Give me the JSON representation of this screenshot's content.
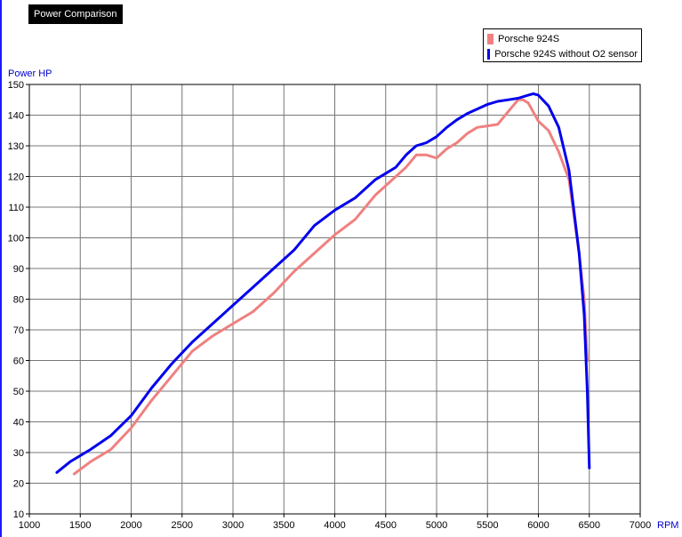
{
  "chart_data": {
    "type": "line",
    "title": "Power Comparison",
    "ylabel": "Power HP",
    "xlabel": "RPM",
    "xlim": [
      1000,
      7000
    ],
    "ylim": [
      10,
      150
    ],
    "xticks": [
      1000,
      1500,
      2000,
      2500,
      3000,
      3500,
      4000,
      4500,
      5000,
      5500,
      6000,
      6500,
      7000
    ],
    "yticks": [
      10,
      20,
      30,
      40,
      50,
      60,
      70,
      80,
      90,
      100,
      110,
      120,
      130,
      140,
      150
    ],
    "grid": true,
    "legend_position": "top-right",
    "series": [
      {
        "name": "Porsche 924S",
        "color": "#f08080",
        "x": [
          1440,
          1600,
          1800,
          2000,
          2200,
          2400,
          2600,
          2800,
          3000,
          3200,
          3400,
          3600,
          3800,
          4000,
          4200,
          4400,
          4500,
          4600,
          4700,
          4800,
          4900,
          5000,
          5100,
          5200,
          5300,
          5400,
          5500,
          5600,
          5700,
          5800,
          5850,
          5900,
          5950,
          6000,
          6100,
          6200,
          6300,
          6400,
          6450,
          6480
        ],
        "y": [
          23,
          27,
          31,
          38,
          47,
          55,
          63,
          68,
          72,
          76,
          82,
          89,
          95,
          101,
          106,
          114,
          117,
          120,
          123,
          127,
          127,
          126,
          129,
          131,
          134,
          136,
          136.5,
          137,
          141,
          145,
          145,
          144,
          141,
          138,
          135,
          128,
          119,
          95,
          80,
          60
        ]
      },
      {
        "name": "Porsche 924S without O2 sensor",
        "color": "#0000ee",
        "x": [
          1270,
          1400,
          1600,
          1800,
          2000,
          2200,
          2400,
          2600,
          2800,
          3000,
          3200,
          3400,
          3600,
          3800,
          4000,
          4200,
          4400,
          4500,
          4600,
          4700,
          4800,
          4900,
          5000,
          5100,
          5200,
          5300,
          5400,
          5500,
          5600,
          5700,
          5800,
          5900,
          5950,
          6000,
          6100,
          6200,
          6300,
          6400,
          6450,
          6480,
          6500
        ],
        "y": [
          23.5,
          27,
          31,
          35.5,
          42,
          51,
          59,
          66,
          72,
          78,
          84,
          90,
          96,
          104,
          109,
          113,
          119,
          121,
          123,
          127,
          130,
          131,
          133,
          136,
          138.5,
          140.5,
          142,
          143.5,
          144.5,
          145,
          145.5,
          146.5,
          147,
          146.5,
          143,
          136,
          122,
          95,
          75,
          50,
          25
        ]
      }
    ]
  }
}
